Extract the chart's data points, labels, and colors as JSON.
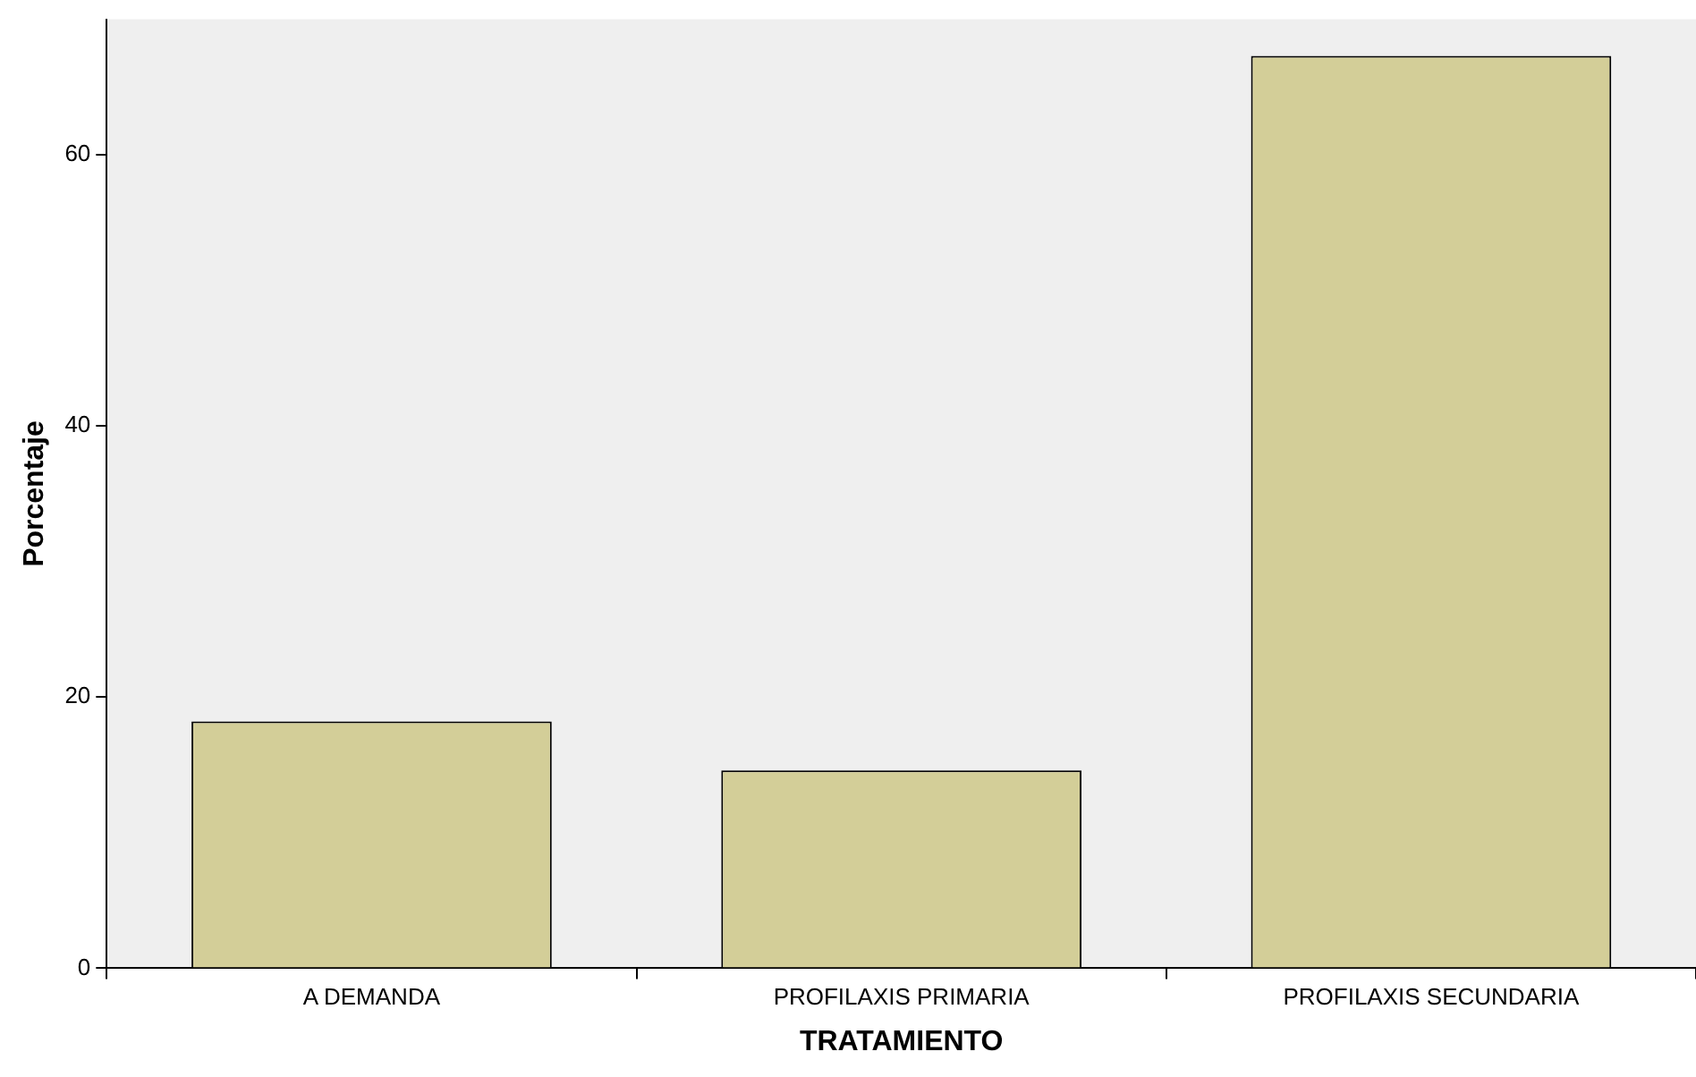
{
  "chart_data": {
    "type": "bar",
    "xlabel": "TRATAMIENTO",
    "ylabel": "Porcentaje",
    "categories": [
      "A DEMANDA",
      "PROFILAXIS PRIMARIA",
      "PROFILAXIS SECUNDARIA"
    ],
    "values": [
      18.2,
      14.6,
      67.3
    ],
    "color": "#d3ce98",
    "ylim": [
      0,
      70
    ],
    "yticks": [
      0,
      20,
      40,
      60
    ]
  }
}
